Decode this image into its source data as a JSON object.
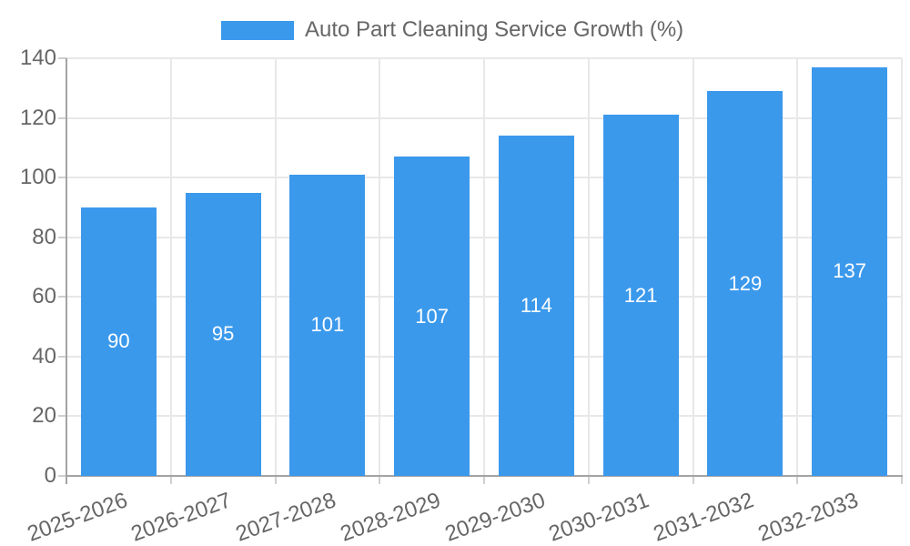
{
  "legend": {
    "label": "Auto Part Cleaning Service Growth (%)",
    "position": "top"
  },
  "chart_data": {
    "type": "bar",
    "title": "Auto Part Cleaning Service Growth (%)",
    "categories": [
      "2025-2026",
      "2026-2027",
      "2027-2028",
      "2028-2029",
      "2029-2030",
      "2030-2031",
      "2031-2032",
      "2032-2033"
    ],
    "values": [
      90,
      95,
      101,
      107,
      114,
      121,
      129,
      137
    ],
    "xlabel": "",
    "ylabel": "",
    "ylim": [
      0,
      140
    ],
    "ytick_step": 20,
    "ytick_labels": [
      "0",
      "20",
      "40",
      "60",
      "80",
      "100",
      "120",
      "140"
    ],
    "grid": true,
    "legend_position": "top",
    "value_labels_shown": true,
    "value_label_position": "center-of-bar"
  },
  "colors": {
    "bar": "#3B99EC",
    "grid": "#E8E8E8",
    "axis": "#A3A3A3",
    "tick": "#CFCFCF",
    "text": "#666666",
    "value_label": "#FFFFFF",
    "background": "#FFFFFF"
  }
}
